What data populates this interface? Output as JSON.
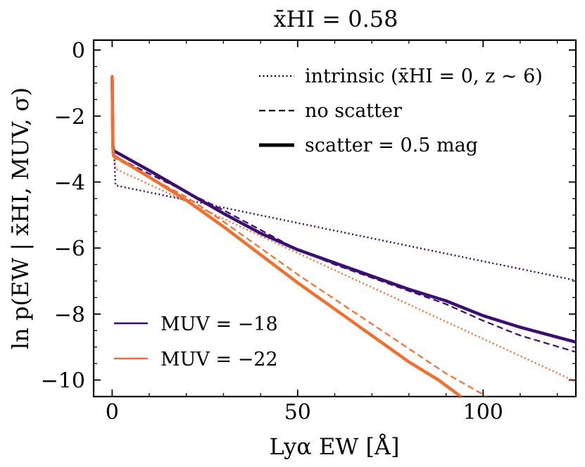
{
  "chart_data": {
    "type": "line",
    "title": "x̄HI = 0.58",
    "xlabel": "Lyα  EW  [Å]",
    "ylabel": "ln p(EW | x̄HI, MUV, σ)",
    "xlim": [
      -5,
      125
    ],
    "ylim": [
      -10.5,
      0.3
    ],
    "x_ticks": [
      0,
      50,
      100
    ],
    "y_ticks": [
      0,
      -2,
      -4,
      -6,
      -8,
      -10
    ],
    "x_tick_labels": [
      "0",
      "50",
      "100"
    ],
    "y_tick_labels": [
      "0",
      "−2",
      "−4",
      "−6",
      "−8",
      "−10"
    ],
    "style_legend": [
      {
        "style": "dotted",
        "label": "intrinsic  (x̄HI = 0,  z ∼ 6)"
      },
      {
        "style": "dashed",
        "label": "no scatter"
      },
      {
        "style": "solid",
        "label": "scatter = 0.5 mag"
      }
    ],
    "color_legend": [
      {
        "color": "#3b0f70",
        "label": "MUV = −18"
      },
      {
        "color": "#f07030",
        "label": "MUV = −22"
      }
    ],
    "series": [
      {
        "name": "MUV = −18 intrinsic",
        "color": "#3b0f70",
        "style": "dotted",
        "width": 2.5,
        "points": [
          [
            0,
            -3.1
          ],
          [
            0.3,
            -3.15
          ],
          [
            0.6,
            -3.3
          ],
          [
            0.9,
            -4.1
          ],
          [
            125,
            -6.98
          ]
        ]
      },
      {
        "name": "MUV = −22 intrinsic",
        "color": "#f07030",
        "style": "dotted",
        "width": 2.5,
        "points": [
          [
            0,
            -3.2
          ],
          [
            0.6,
            -3.25
          ],
          [
            0.9,
            -3.6
          ],
          [
            125,
            -10.05
          ]
        ]
      },
      {
        "name": "MUV = −18 no scatter",
        "color": "#3b0f70",
        "style": "dashed",
        "width": 2.2,
        "points": [
          [
            0,
            -1.0
          ],
          [
            0.2,
            -2.9
          ],
          [
            0.4,
            -3.2
          ],
          [
            10,
            -3.75
          ],
          [
            20,
            -4.3
          ],
          [
            30,
            -4.85
          ],
          [
            40,
            -5.45
          ],
          [
            50,
            -6.05
          ],
          [
            60,
            -6.5
          ],
          [
            70,
            -6.9
          ],
          [
            80,
            -7.3
          ],
          [
            90,
            -7.7
          ],
          [
            100,
            -8.2
          ],
          [
            110,
            -8.65
          ],
          [
            125,
            -9.15
          ]
        ]
      },
      {
        "name": "MUV = −22 no scatter",
        "color": "#f07030",
        "style": "dashed",
        "width": 2.2,
        "points": [
          [
            0,
            -0.8
          ],
          [
            0.2,
            -3.0
          ],
          [
            0.4,
            -3.25
          ],
          [
            10,
            -3.85
          ],
          [
            20,
            -4.45
          ],
          [
            30,
            -5.2
          ],
          [
            40,
            -6.0
          ],
          [
            50,
            -6.8
          ],
          [
            60,
            -7.55
          ],
          [
            70,
            -8.3
          ],
          [
            80,
            -9.05
          ],
          [
            90,
            -9.8
          ],
          [
            101,
            -10.5
          ]
        ]
      },
      {
        "name": "MUV = −18 scatter",
        "color": "#3b0f70",
        "style": "solid",
        "width": 4.5,
        "points": [
          [
            0,
            -0.85
          ],
          [
            0.2,
            -2.9
          ],
          [
            0.4,
            -3.05
          ],
          [
            10,
            -3.65
          ],
          [
            20,
            -4.3
          ],
          [
            30,
            -4.95
          ],
          [
            40,
            -5.55
          ],
          [
            50,
            -6.05
          ],
          [
            60,
            -6.45
          ],
          [
            70,
            -6.85
          ],
          [
            80,
            -7.25
          ],
          [
            90,
            -7.6
          ],
          [
            100,
            -8.05
          ],
          [
            110,
            -8.4
          ],
          [
            125,
            -8.85
          ]
        ]
      },
      {
        "name": "MUV = −22 scatter",
        "color": "#f07030",
        "style": "solid",
        "width": 4.5,
        "points": [
          [
            0,
            -0.8
          ],
          [
            0.2,
            -3.0
          ],
          [
            0.4,
            -3.2
          ],
          [
            10,
            -3.85
          ],
          [
            20,
            -4.55
          ],
          [
            30,
            -5.35
          ],
          [
            40,
            -6.2
          ],
          [
            50,
            -7.05
          ],
          [
            60,
            -7.85
          ],
          [
            70,
            -8.65
          ],
          [
            80,
            -9.45
          ],
          [
            88,
            -10.0
          ],
          [
            94,
            -10.5
          ]
        ]
      }
    ]
  }
}
